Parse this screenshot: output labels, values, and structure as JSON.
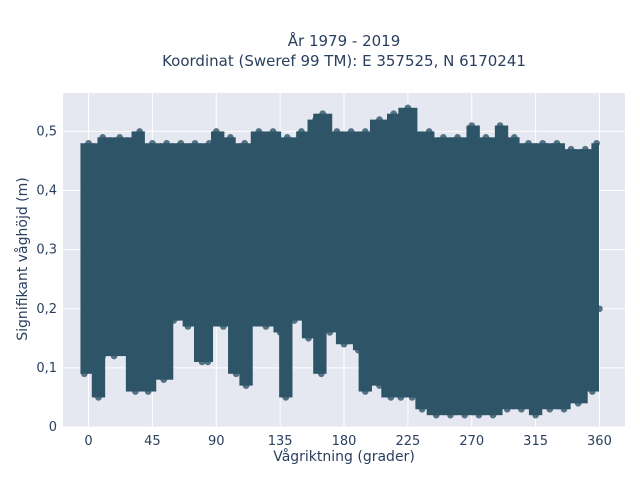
{
  "chart_data": {
    "type": "scatter",
    "title_lines": [
      "År 1979 - 2019",
      "Koordinat (Sweref 99 TM): E 357525, N 6170241"
    ],
    "xlabel": "Vågriktning (grader)",
    "ylabel": "Signifikant våghöjd (m)",
    "xlim": [
      -18,
      378
    ],
    "ylim": [
      0,
      0.565
    ],
    "x_ticks": [
      0,
      45,
      90,
      135,
      180,
      225,
      270,
      315,
      360
    ],
    "x_tick_labels": [
      "0",
      "45",
      "90",
      "135",
      "180",
      "225",
      "270",
      "315",
      "360"
    ],
    "y_ticks": [
      0,
      0.1,
      0.2,
      0.3,
      0.4,
      0.5
    ],
    "y_tick_labels": [
      "0",
      "0,1",
      "0,2",
      "0,3",
      "0,4",
      "0,5"
    ],
    "grid": true,
    "legend": "none",
    "marker_color": "#2e5468",
    "background_color": "#e5e8f0",
    "series": [
      {
        "values": [
          [
            -3,
            0.17
          ],
          [
            0,
            0.48
          ],
          [
            3,
            0.24
          ],
          [
            6,
            0.16
          ],
          [
            10,
            0.49
          ],
          [
            12,
            0.14
          ],
          [
            15,
            0.48
          ],
          [
            18,
            0.12
          ],
          [
            22,
            0.49
          ],
          [
            25,
            0.15
          ],
          [
            30,
            0.48
          ],
          [
            35,
            0.16
          ],
          [
            36,
            0.5
          ],
          [
            40,
            0.19
          ],
          [
            45,
            0.48
          ],
          [
            50,
            0.16
          ],
          [
            55,
            0.48
          ],
          [
            60,
            0.18
          ],
          [
            65,
            0.48
          ],
          [
            70,
            0.17
          ],
          [
            75,
            0.48
          ],
          [
            80,
            0.2
          ],
          [
            85,
            0.48
          ],
          [
            90,
            0.5
          ],
          [
            95,
            0.17
          ],
          [
            100,
            0.49
          ],
          [
            105,
            0.23
          ],
          [
            110,
            0.48
          ],
          [
            115,
            0.18
          ],
          [
            120,
            0.5
          ],
          [
            125,
            0.17
          ],
          [
            130,
            0.5
          ],
          [
            135,
            0.16
          ],
          [
            140,
            0.49
          ],
          [
            145,
            0.18
          ],
          [
            150,
            0.5
          ],
          [
            155,
            0.15
          ],
          [
            160,
            0.52
          ],
          [
            165,
            0.53
          ],
          [
            170,
            0.16
          ],
          [
            175,
            0.5
          ],
          [
            180,
            0.14
          ],
          [
            185,
            0.5
          ],
          [
            190,
            0.13
          ],
          [
            195,
            0.5
          ],
          [
            200,
            0.12
          ],
          [
            205,
            0.52
          ],
          [
            210,
            0.1
          ],
          [
            215,
            0.53
          ],
          [
            220,
            0.08
          ],
          [
            225,
            0.54
          ],
          [
            228,
            0.05
          ],
          [
            232,
            0.49
          ],
          [
            235,
            0.03
          ],
          [
            240,
            0.5
          ],
          [
            245,
            0.02
          ],
          [
            250,
            0.49
          ],
          [
            255,
            0.02
          ],
          [
            260,
            0.49
          ],
          [
            265,
            0.02
          ],
          [
            270,
            0.51
          ],
          [
            275,
            0.02
          ],
          [
            280,
            0.49
          ],
          [
            285,
            0.02
          ],
          [
            290,
            0.51
          ],
          [
            295,
            0.03
          ],
          [
            300,
            0.49
          ],
          [
            305,
            0.03
          ],
          [
            310,
            0.48
          ],
          [
            315,
            0.02
          ],
          [
            320,
            0.48
          ],
          [
            325,
            0.03
          ],
          [
            330,
            0.48
          ],
          [
            335,
            0.03
          ],
          [
            340,
            0.47
          ],
          [
            345,
            0.04
          ],
          [
            350,
            0.47
          ],
          [
            355,
            0.06
          ],
          [
            358,
            0.48
          ],
          [
            360,
            0.2
          ],
          [
            -3,
            0.09
          ],
          [
            2,
            0.13
          ],
          [
            6,
            0.09
          ],
          [
            7,
            0.05
          ],
          [
            10,
            0.12
          ],
          [
            33,
            0.06
          ],
          [
            42,
            0.06
          ],
          [
            53,
            0.08
          ],
          [
            54,
            0.09
          ],
          [
            80,
            0.11
          ],
          [
            84,
            0.11
          ],
          [
            104,
            0.09
          ],
          [
            111,
            0.07
          ],
          [
            139,
            0.05
          ],
          [
            164,
            0.09
          ],
          [
            195,
            0.06
          ],
          [
            205,
            0.07
          ],
          [
            213,
            0.05
          ],
          [
            220,
            0.05
          ]
        ]
      }
    ]
  }
}
